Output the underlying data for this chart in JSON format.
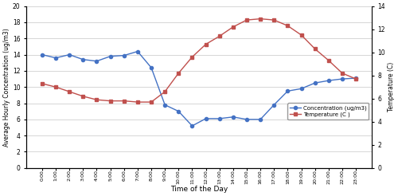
{
  "time_labels": [
    "0:00",
    "1:00",
    "2:00",
    "3:00",
    "4:00",
    "5:00",
    "6:00",
    "7:00",
    "8:00",
    "9:00",
    "10:00",
    "11:00",
    "12:00",
    "13:00",
    "14:00",
    "15:00",
    "16:00",
    "17:00",
    "18:00",
    "19:00",
    "20:00",
    "21:00",
    "22:00",
    "23:00"
  ],
  "concentration": [
    14.0,
    13.6,
    14.0,
    13.4,
    13.2,
    13.8,
    13.9,
    14.4,
    12.4,
    7.8,
    7.0,
    5.2,
    6.1,
    6.1,
    6.3,
    6.0,
    6.0,
    7.8,
    9.5,
    9.8,
    10.5,
    10.8,
    11.0,
    11.1
  ],
  "temperature": [
    7.3,
    7.0,
    6.6,
    6.2,
    5.9,
    5.8,
    5.8,
    5.7,
    5.7,
    6.6,
    8.2,
    9.6,
    10.7,
    11.4,
    12.2,
    12.8,
    12.9,
    12.8,
    12.3,
    11.5,
    10.3,
    9.3,
    8.2,
    7.7
  ],
  "conc_color": "#4472C4",
  "temp_color": "#C0504D",
  "ylabel_left": "Average Hourly Concentration (ug/m3)",
  "ylabel_right": "Temperature (C)",
  "xlabel": "Time of the Day",
  "ylim_left": [
    0,
    20
  ],
  "ylim_right": [
    0,
    14
  ],
  "yticks_left": [
    0,
    2,
    4,
    6,
    8,
    10,
    12,
    14,
    16,
    18,
    20
  ],
  "yticks_right": [
    0,
    2,
    4,
    6,
    8,
    10,
    12,
    14
  ],
  "legend_conc": "Concentration (ug/m3)",
  "legend_temp": "Temperature (C )",
  "bg_color": "#ffffff",
  "grid_color": "#d0d0d0"
}
